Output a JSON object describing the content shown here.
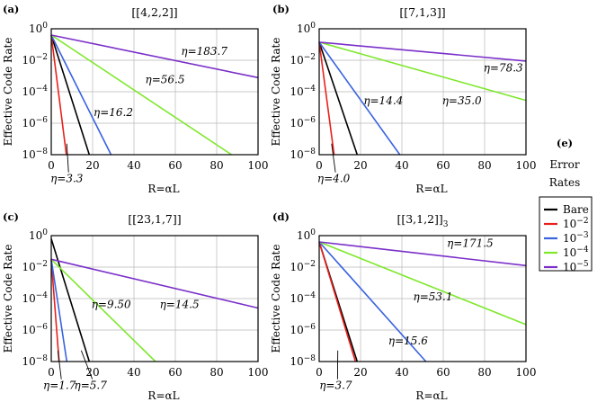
{
  "chart_data": [
    {
      "type": "line",
      "panel": "(a)",
      "title": "[[4,2,2]]",
      "xlabel": "R=αL",
      "ylabel": "Effective Code Rate",
      "xlim": [
        0,
        100
      ],
      "ylim_log10": [
        -8,
        0
      ],
      "x_ticks": [
        "0",
        "20",
        "40",
        "60",
        "80",
        "100"
      ],
      "y_ticks": [
        "10^0",
        "10^-2",
        "10^-4",
        "10^-6",
        "10^-8"
      ],
      "series": [
        {
          "name": "Bare",
          "x": [
            0,
            18.4
          ],
          "y_log10": [
            -0.4,
            -8
          ]
        },
        {
          "name": "10^-2",
          "x": [
            0,
            7.3
          ],
          "y_log10": [
            -0.4,
            -8
          ]
        },
        {
          "name": "10^-3",
          "x": [
            0,
            28.9
          ],
          "y_log10": [
            -0.4,
            -8
          ]
        },
        {
          "name": "10^-4",
          "x": [
            0,
            87.2
          ],
          "y_log10": [
            -0.4,
            -8
          ]
        },
        {
          "name": "10^-5",
          "x": [
            0,
            100
          ],
          "y_log10": [
            -0.4,
            -3.1
          ]
        }
      ],
      "annotations": [
        {
          "text": "η=183.7",
          "x": 74,
          "y_log10": -1.65
        },
        {
          "text": "η=56.5",
          "x": 55,
          "y_log10": -3.45
        },
        {
          "text": "η=16.2",
          "x": 30,
          "y_log10": -5.55
        },
        {
          "text": "η=3.3",
          "x": 7.5,
          "y_log10": -9.75
        }
      ]
    },
    {
      "type": "line",
      "panel": "(b)",
      "title": "[[7,1,3]]",
      "xlabel": "R=αL",
      "ylabel": "Effective Code Rate",
      "xlim": [
        0,
        100
      ],
      "ylim_log10": [
        -8,
        0
      ],
      "x_ticks": [
        "0",
        "20",
        "40",
        "60",
        "80",
        "100"
      ],
      "y_ticks": [
        "10^0",
        "10^-2",
        "10^-4",
        "10^-6",
        "10^-8"
      ],
      "series": [
        {
          "name": "Bare",
          "x": [
            0,
            18.4
          ],
          "y_log10": [
            -0.85,
            -8
          ]
        },
        {
          "name": "10^-2",
          "x": [
            0,
            7.2
          ],
          "y_log10": [
            -0.85,
            -8
          ]
        },
        {
          "name": "10^-3",
          "x": [
            0,
            39
          ],
          "y_log10": [
            -0.85,
            -8
          ]
        },
        {
          "name": "10^-4",
          "x": [
            0,
            100
          ],
          "y_log10": [
            -0.85,
            -4.55
          ]
        },
        {
          "name": "10^-5",
          "x": [
            0,
            100
          ],
          "y_log10": [
            -0.85,
            -2.05
          ]
        }
      ],
      "annotations": [
        {
          "text": "η=78.3",
          "x": 89,
          "y_log10": -2.7
        },
        {
          "text": "η=35.0",
          "x": 69,
          "y_log10": -4.8
        },
        {
          "text": "η=14.4",
          "x": 31,
          "y_log10": -4.8
        },
        {
          "text": "η=4.0",
          "x": 7,
          "y_log10": -9.75
        }
      ]
    },
    {
      "type": "line",
      "panel": "(c)",
      "title": "[[23,1,7]]",
      "xlabel": "R=αL",
      "ylabel": "Effective Code Rate",
      "xlim": [
        0,
        100
      ],
      "ylim_log10": [
        -8,
        0
      ],
      "x_ticks": [
        "0",
        "20",
        "40",
        "60",
        "80",
        "100"
      ],
      "y_ticks": [
        "10^0",
        "10^-2",
        "10^-4",
        "10^-6",
        "10^-8"
      ],
      "series": [
        {
          "name": "Bare",
          "x": [
            0,
            18.4
          ],
          "y_log10": [
            -0.2,
            -8
          ]
        },
        {
          "name": "10^-2",
          "x": [
            0,
            3.8
          ],
          "y_log10": [
            -1.5,
            -8
          ]
        },
        {
          "name": "10^-3",
          "x": [
            0,
            7.5
          ],
          "y_log10": [
            -1.5,
            -8
          ]
        },
        {
          "name": "10^-4",
          "x": [
            0,
            50.4
          ],
          "y_log10": [
            -1.5,
            -8
          ]
        },
        {
          "name": "10^-5",
          "x": [
            0,
            100
          ],
          "y_log10": [
            -1.5,
            -4.6
          ]
        }
      ],
      "annotations": [
        {
          "text": "η=9.50",
          "x": 29,
          "y_log10": -4.6
        },
        {
          "text": "η=14.5",
          "x": 62,
          "y_log10": -4.6
        },
        {
          "text": "η=1.7",
          "x": 4,
          "y_log10": -9.75
        },
        {
          "text": "η=5.7",
          "x": 19,
          "y_log10": -9.75
        }
      ]
    },
    {
      "type": "line",
      "panel": "(d)",
      "title": "[[3,1,2]]3",
      "xlabel": "R=αL",
      "ylabel": "Effective Code Rate",
      "xlim": [
        0,
        100
      ],
      "ylim_log10": [
        -8,
        0
      ],
      "x_ticks": [
        "0",
        "20",
        "40",
        "60",
        "80",
        "100"
      ],
      "y_ticks": [
        "10^0",
        "10^-2",
        "10^-4",
        "10^-6",
        "10^-8"
      ],
      "series": [
        {
          "name": "Bare",
          "x": [
            0,
            18.4
          ],
          "y_log10": [
            -0.4,
            -8
          ]
        },
        {
          "name": "10^-2",
          "x": [
            0,
            17.5
          ],
          "y_log10": [
            -0.4,
            -8
          ]
        },
        {
          "name": "10^-3",
          "x": [
            0,
            51.6
          ],
          "y_log10": [
            -0.4,
            -8
          ]
        },
        {
          "name": "10^-4",
          "x": [
            0,
            100
          ],
          "y_log10": [
            -0.4,
            -5.65
          ]
        },
        {
          "name": "10^-5",
          "x": [
            0,
            100
          ],
          "y_log10": [
            -0.4,
            -1.9
          ]
        }
      ],
      "annotations": [
        {
          "text": "η=171.5",
          "x": 73,
          "y_log10": -0.7
        },
        {
          "text": "η=53.1",
          "x": 55,
          "y_log10": -4.1
        },
        {
          "text": "η=15.6",
          "x": 43,
          "y_log10": -6.9
        },
        {
          "text": "η=3.7",
          "x": 8,
          "y_log10": -9.75
        }
      ]
    }
  ],
  "legend": {
    "label": "(e)",
    "title_line1": "Error",
    "title_line2": "Rates",
    "entries": [
      {
        "name": "Bare",
        "base": "Bare",
        "exp": "",
        "color": "#000000"
      },
      {
        "name": "10^-2",
        "base": "10",
        "exp": "−2",
        "color": "#e8211c"
      },
      {
        "name": "10^-3",
        "base": "10",
        "exp": "−3",
        "color": "#3a63e0"
      },
      {
        "name": "10^-4",
        "base": "10",
        "exp": "−4",
        "color": "#7ee82c"
      },
      {
        "name": "10^-5",
        "base": "10",
        "exp": "−5",
        "color": "#7a2fc9"
      }
    ]
  }
}
